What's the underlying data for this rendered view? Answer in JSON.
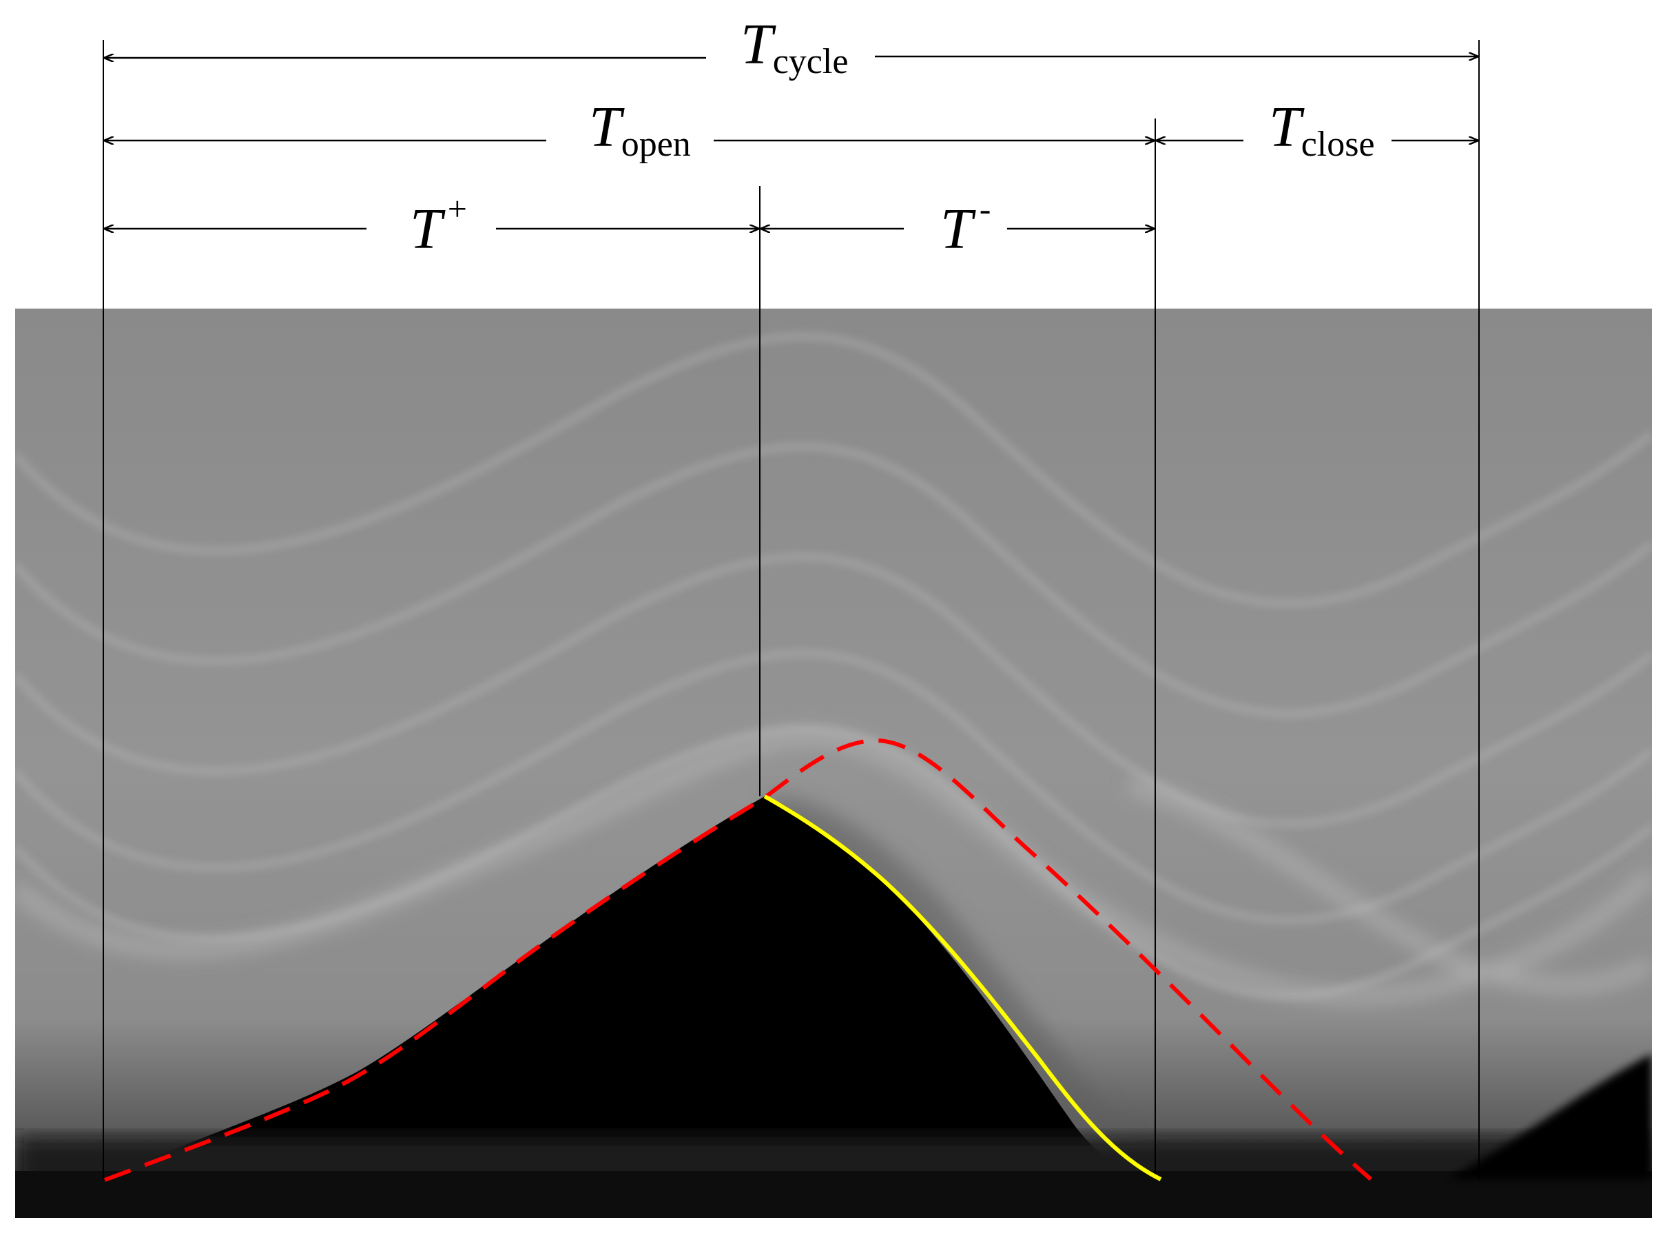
{
  "labels": {
    "cycle": {
      "base": "T",
      "sub": "cycle"
    },
    "open": {
      "base": "T",
      "sub": "open"
    },
    "close": {
      "base": "T",
      "sub": "close"
    },
    "plus": {
      "base": "T",
      "sup": "+"
    },
    "minus": {
      "base": "T",
      "sup": "-"
    }
  },
  "colors": {
    "dashed_curve": "#ff0000",
    "solid_curve": "#ffff00",
    "dimension_lines": "#000000",
    "background_gray": "#8e8e8e",
    "dark_region": "#000000"
  }
}
